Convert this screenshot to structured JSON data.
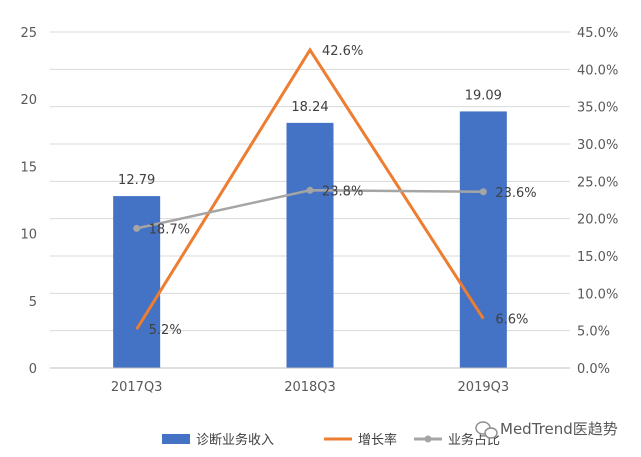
{
  "chart_data": {
    "type": "bar",
    "categories": [
      "2017Q3",
      "2018Q3",
      "2019Q3"
    ],
    "series": [
      {
        "name": "诊断业务收入",
        "kind": "bar",
        "axis": "left",
        "values": [
          12.79,
          18.24,
          19.09
        ],
        "labels": [
          "12.79",
          "18.24",
          "19.09"
        ],
        "color": "#4472C4"
      },
      {
        "name": "增长率",
        "kind": "line",
        "axis": "right",
        "values": [
          5.2,
          42.6,
          6.6
        ],
        "labels": [
          "5.2%",
          "42.6%",
          "6.6%"
        ],
        "color": "#ED7D31"
      },
      {
        "name": "业务占比",
        "kind": "line",
        "axis": "right",
        "values": [
          18.7,
          23.8,
          23.6
        ],
        "labels": [
          "18.7%",
          "23.8%",
          "23.6%"
        ],
        "color": "#A5A5A5",
        "markers": true
      }
    ],
    "y_left": {
      "ticks": [
        "0",
        "5",
        "10",
        "15",
        "20",
        "25"
      ],
      "range": [
        0,
        25
      ]
    },
    "y_right": {
      "ticks": [
        "0.0%",
        "5.0%",
        "10.0%",
        "15.0%",
        "20.0%",
        "25.0%",
        "30.0%",
        "35.0%",
        "40.0%",
        "45.0%"
      ],
      "range": [
        0,
        45
      ]
    },
    "grid": true,
    "legend_position": "bottom"
  },
  "watermark": {
    "text": "MedTrend医趋势",
    "icon": "wechat-icon"
  }
}
